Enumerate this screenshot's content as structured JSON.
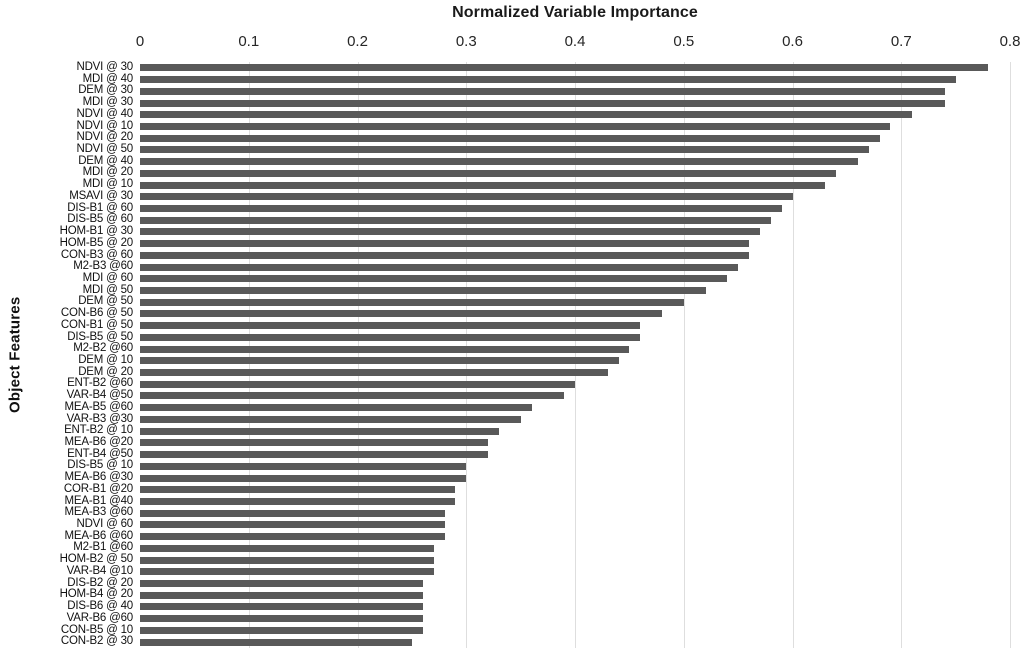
{
  "chart_data": {
    "type": "bar",
    "orientation": "horizontal",
    "title": "Normalized Variable Importance",
    "xlabel": "Normalized Variable Importance",
    "ylabel": "Object Features",
    "xlim": [
      0,
      0.8
    ],
    "x_ticks": [
      "0",
      "0.1",
      "0.2",
      "0.3",
      "0.4",
      "0.5",
      "0.6",
      "0.7",
      "0.8"
    ],
    "grid": "vertical gridlines at every 0.1",
    "legend": "none",
    "bar_color": "#595959",
    "gridline_color": "#dedede",
    "categories": [
      "NDVI @ 30",
      "MDI @ 40",
      "DEM @ 30",
      "MDI @ 30",
      "NDVI @ 40",
      "NDVI @ 10",
      "NDVI @ 20",
      "NDVI @ 50",
      "DEM @ 40",
      "MDI @ 20",
      "MDI @ 10",
      "MSAVI @ 30",
      "DIS-B1 @ 60",
      "DIS-B5 @ 60",
      "HOM-B1 @ 30",
      "HOM-B5 @ 20",
      "CON-B3 @ 60",
      "M2-B3 @60",
      "MDI @ 60",
      "MDI @ 50",
      "DEM @ 50",
      "CON-B6 @ 50",
      "CON-B1 @ 50",
      "DIS-B5 @ 50",
      "M2-B2 @60",
      "DEM @ 10",
      "DEM @ 20",
      "ENT-B2 @60",
      "VAR-B4 @50",
      "MEA-B5 @60",
      "VAR-B3 @30",
      "ENT-B2 @ 10",
      "MEA-B6 @20",
      "ENT-B4 @50",
      "DIS-B5 @ 10",
      "MEA-B6 @30",
      "COR-B1 @20",
      "MEA-B1 @40",
      "MEA-B3 @60",
      "NDVI @ 60",
      "MEA-B6 @60",
      "M2-B1 @60",
      "HOM-B2 @ 50",
      "VAR-B4 @10",
      "DIS-B2 @ 20",
      "HOM-B4 @ 20",
      "DIS-B6 @ 40",
      "VAR-B6 @60",
      "CON-B5 @ 10",
      "CON-B2 @ 30"
    ],
    "values": [
      0.78,
      0.75,
      0.74,
      0.74,
      0.71,
      0.69,
      0.68,
      0.67,
      0.66,
      0.64,
      0.63,
      0.6,
      0.59,
      0.58,
      0.57,
      0.56,
      0.56,
      0.55,
      0.54,
      0.52,
      0.5,
      0.48,
      0.46,
      0.46,
      0.45,
      0.44,
      0.43,
      0.4,
      0.39,
      0.36,
      0.35,
      0.33,
      0.32,
      0.32,
      0.3,
      0.3,
      0.29,
      0.29,
      0.28,
      0.28,
      0.28,
      0.27,
      0.27,
      0.27,
      0.26,
      0.26,
      0.26,
      0.26,
      0.26,
      0.25
    ]
  }
}
